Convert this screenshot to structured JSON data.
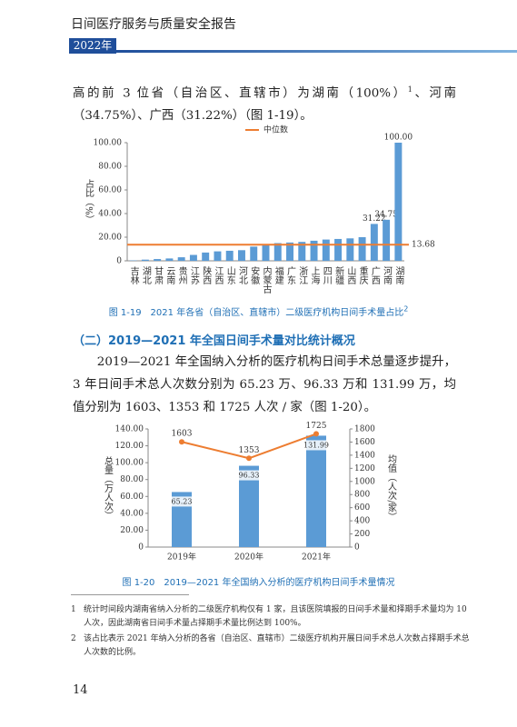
{
  "header": {
    "title": "日间医疗服务与质量安全报告",
    "year": "2022年"
  },
  "paragraph_1": {
    "before": "高的前 3 位省（自治区、直辖市）为湖南（100%）",
    "ref": "1",
    "after": "、河南（34.75%）、广西（31.22%）（图 1-19）。"
  },
  "section_title": "（二）2019—2021 年全国日间手术量对比统计概况",
  "paragraph_2": "2019—2021 年全国纳入分析的医疗机构日间手术总量逐步提升，3 年日间手术总人次数分别为 65.23 万、96.33 万和 131.99 万，均值分别为 1603、1353 和 1725 人次 / 家（图 1-20）。",
  "chart_data": [
    {
      "type": "bar",
      "caption": "图 1-19　2021 年各省（自治区、直辖市）二级医疗机构日间手术量占比",
      "caption_ref": "2",
      "y_label": "占比（%）",
      "categories": [
        "吉林",
        "湖北",
        "甘肃",
        "云南",
        "贵州",
        "江苏",
        "陕西",
        "江西",
        "山东",
        "河北",
        "安徽",
        "内蒙古",
        "福建",
        "广东",
        "浙江",
        "上海",
        "四川",
        "新疆",
        "山西",
        "重庆",
        "广西",
        "河南",
        "湖南"
      ],
      "values": [
        0.3,
        1,
        1.5,
        2,
        3,
        5,
        7,
        8,
        8.5,
        9,
        12,
        14,
        15,
        15.5,
        16,
        17,
        18,
        18.5,
        19,
        20,
        31.22,
        34.75,
        100
      ],
      "value_labels": [
        null,
        null,
        null,
        null,
        null,
        null,
        null,
        null,
        null,
        null,
        null,
        null,
        null,
        null,
        null,
        null,
        null,
        null,
        null,
        null,
        "31.22",
        "34.75",
        "100.00"
      ],
      "color": "#5b9bd5",
      "reference_line": {
        "name": "中位数",
        "value": 13.68,
        "color": "#ed7d31"
      },
      "ylim": [
        0,
        100
      ],
      "yticks": [
        0,
        {
          "value": 20,
          "label": "20.00"
        },
        {
          "value": 40,
          "label": "40.00"
        },
        {
          "value": 60,
          "label": "60.00"
        },
        {
          "value": 80,
          "label": "80.00"
        },
        {
          "value": 100,
          "label": "100.00"
        }
      ]
    },
    {
      "type": "bar-line",
      "caption": "图 1-20　2019—2021 年全国纳入分析的医疗机构日间手术量情况",
      "y_label": "总量（万人次）",
      "y2_label": "均值（人次/家）",
      "categories": [
        "2019年",
        "2020年",
        "2021年"
      ],
      "series": [
        {
          "type": "bar",
          "color": "#5b9bd5",
          "values": [
            65.23,
            96.33,
            131.99
          ]
        },
        {
          "type": "line",
          "axis": "y2",
          "color": "#ed7d31",
          "values": [
            1603,
            1353,
            1725
          ]
        }
      ],
      "ylim": [
        0,
        140
      ],
      "yticks": [
        0,
        {
          "value": 20,
          "label": "20.00"
        },
        {
          "value": 40,
          "label": "40.00"
        },
        {
          "value": 60,
          "label": "60.00"
        },
        {
          "value": 80,
          "label": "80.00"
        },
        {
          "value": 100,
          "label": "100.00"
        },
        {
          "value": 120,
          "label": "120.00"
        },
        {
          "value": 140,
          "label": "140.00"
        }
      ],
      "y2lim": [
        0,
        1800
      ],
      "y2ticks": [
        0,
        200,
        400,
        600,
        800,
        1000,
        1200,
        1400,
        1600,
        1800
      ]
    }
  ],
  "footnotes": [
    {
      "number": "1",
      "text": "统计时间段内湖南省纳入分析的二级医疗机构仅有 1 家，且该医院填报的日间手术量和择期手术量均为 10 人次，因此湖南省日间手术量占择期手术量比例达到 100%。"
    },
    {
      "number": "2",
      "text": "该占比表示 2021 年纳入分析的各省（自治区、直辖市）二级医疗机构开展日间手术总人次数占择期手术总人次数的比例。"
    }
  ],
  "page_number": "14"
}
